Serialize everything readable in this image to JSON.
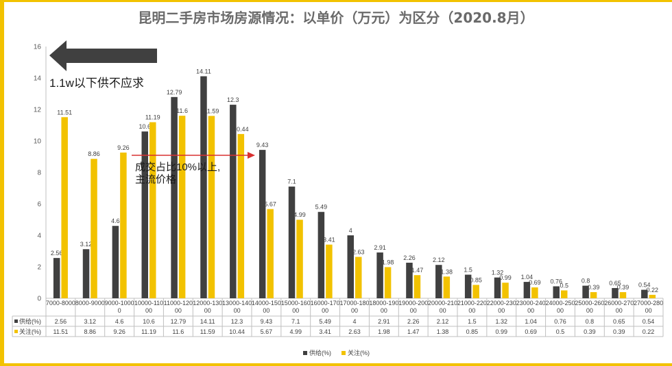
{
  "chart_data": {
    "type": "bar",
    "title": "昆明二手房市场房源情况：以单价（万元）为区分（2020.8月）",
    "categories": [
      "7000-8000",
      "8000-9000",
      "9000-10000",
      "10000-11000",
      "11000-12000",
      "12000-13000",
      "13000-14000",
      "14000-15000",
      "15000-16000",
      "16000-17000",
      "17000-18000",
      "18000-19000",
      "19000-20000",
      "20000-21000",
      "21000-22000",
      "22000-23000",
      "23000-24000",
      "24000-25000",
      "25000-26000",
      "26000-27000",
      "27000-28000"
    ],
    "series": [
      {
        "name": "供给(%)",
        "color": "#404040",
        "values": [
          2.56,
          3.12,
          4.6,
          10.6,
          12.79,
          14.11,
          12.3,
          9.43,
          7.1,
          5.49,
          4,
          2.91,
          2.26,
          2.12,
          1.5,
          1.32,
          1.04,
          0.76,
          0.8,
          0.65,
          0.54
        ]
      },
      {
        "name": "关注(%)",
        "color": "#f2c200",
        "values": [
          11.51,
          8.86,
          9.26,
          11.19,
          11.6,
          11.59,
          10.44,
          5.67,
          4.99,
          3.41,
          2.63,
          1.98,
          1.47,
          1.38,
          0.85,
          0.99,
          0.69,
          0.5,
          0.39,
          0.39,
          0.22
        ]
      }
    ],
    "ylim": [
      0,
      16
    ],
    "yticks": [
      0,
      2,
      4,
      6,
      8,
      10,
      12,
      14,
      16
    ],
    "grid": false,
    "legend_position": "bottom",
    "data_table": true,
    "annotations": [
      {
        "text": "1.1w以下供不应求",
        "shape": "left-arrow",
        "color": "#404040"
      },
      {
        "lines": [
          "成交占比10%以上,",
          "主流价格"
        ],
        "shape": "right-arrow",
        "color": "#d93030"
      }
    ]
  }
}
